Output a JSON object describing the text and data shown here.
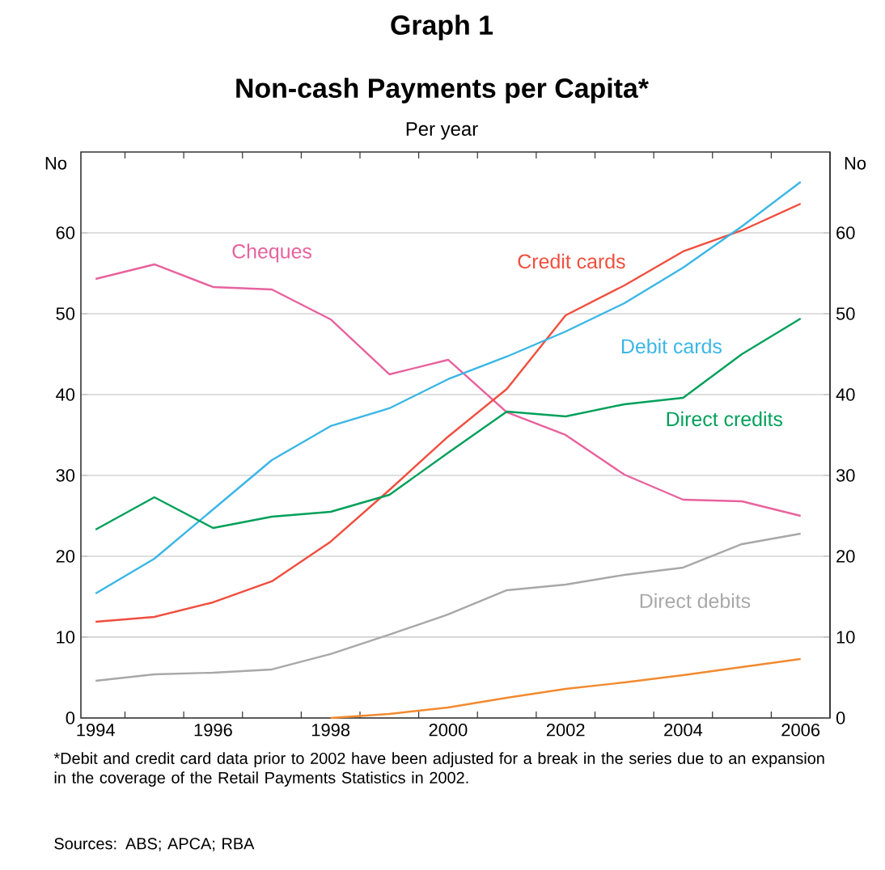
{
  "chart_data": {
    "type": "line",
    "title": "Non-cash Payments per Capita*",
    "subtitle": "Per year",
    "ylabel": "No",
    "y2label": "No",
    "annotations": [
      "Graph 1",
      "*Debit and credit card data prior to 2002 have been adjusted for a break in the series due to an expansion in the coverage of the Retail Payments Statistics in 2002.",
      "Sources: ABS; APCA; RBA"
    ],
    "x": [
      1994,
      1995,
      1996,
      1997,
      1998,
      1999,
      2000,
      2001,
      2002,
      2003,
      2004,
      2005,
      2006
    ],
    "series": [
      {
        "name": "Cheques",
        "color": "#e8629e",
        "values": [
          54.3,
          56.1,
          53.3,
          53.0,
          49.3,
          42.5,
          44.3,
          37.8,
          35.0,
          30.1,
          27.0,
          26.8,
          25.0
        ]
      },
      {
        "name": "Credit cards",
        "color": "#f04e3e",
        "values": [
          11.9,
          12.5,
          14.3,
          16.9,
          21.8,
          28.2,
          34.8,
          40.7,
          49.8,
          53.5,
          57.7,
          60.3,
          63.6
        ]
      },
      {
        "name": "Debit cards",
        "color": "#3ab6e6",
        "values": [
          15.4,
          19.7,
          25.8,
          31.9,
          36.1,
          38.3,
          41.9,
          44.7,
          47.8,
          51.3,
          55.7,
          60.8,
          66.3
        ]
      },
      {
        "name": "Direct credits",
        "color": "#00a05a",
        "values": [
          23.3,
          27.3,
          23.5,
          24.9,
          25.5,
          27.6,
          32.8,
          37.9,
          37.3,
          38.8,
          39.6,
          45.0,
          49.4
        ]
      },
      {
        "name": "Direct debits",
        "color": "#a8a8a8",
        "values": [
          4.6,
          5.4,
          5.6,
          6.0,
          7.9,
          10.3,
          12.8,
          15.8,
          16.5,
          17.7,
          18.6,
          21.5,
          22.8
        ]
      },
      {
        "color": "#f28a30",
        "values": [
          null,
          null,
          null,
          null,
          0.0,
          0.5,
          1.3,
          2.5,
          3.6,
          4.4,
          5.3,
          6.3,
          7.3
        ]
      }
    ],
    "xlim": [
      1993.75,
      2006.5
    ],
    "xticks": [
      1994,
      1996,
      1998,
      2000,
      2002,
      2004,
      2006,
      {
        "value": 1994.5,
        "label": null
      },
      {
        "value": 1995.5,
        "label": null
      },
      {
        "value": 1996.5,
        "label": null
      },
      {
        "value": 1997.5,
        "label": null
      },
      {
        "value": 1998.5,
        "label": null
      },
      {
        "value": 1999.5,
        "label": null
      },
      {
        "value": 2000.5,
        "label": null
      },
      {
        "value": 2001.5,
        "label": null
      },
      {
        "value": 2002.5,
        "label": null
      },
      {
        "value": 2003.5,
        "label": null
      },
      {
        "value": 2004.5,
        "label": null
      },
      {
        "value": 2005.5,
        "label": null
      }
    ],
    "ylim": [
      0,
      70
    ],
    "yticks": [
      0,
      10,
      20,
      30,
      40,
      50,
      60
    ],
    "y2lim": [
      0,
      70
    ],
    "y2ticks": [
      0,
      10,
      20,
      30,
      40,
      50,
      60
    ],
    "grid": "y",
    "line_style": "solid",
    "marker": "none"
  }
}
